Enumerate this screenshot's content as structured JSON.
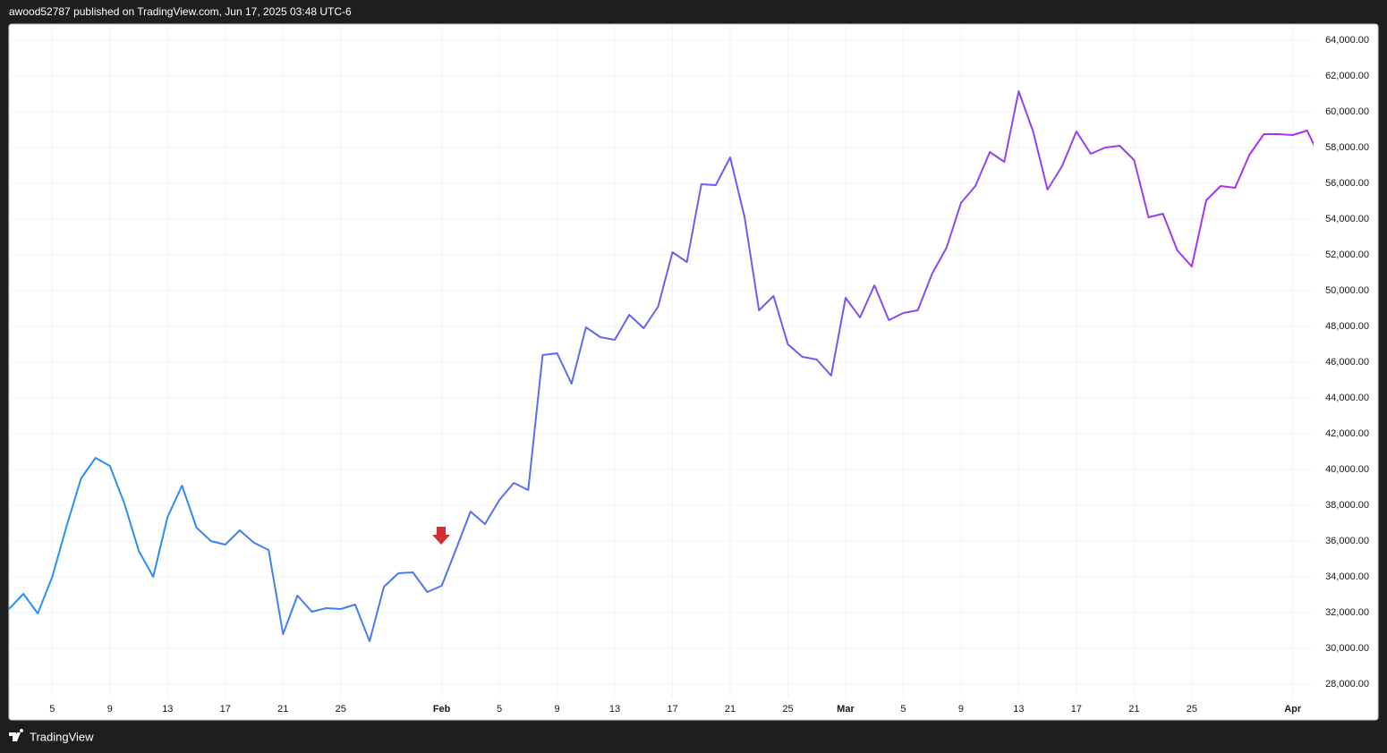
{
  "header": {
    "title": "awood52787 published on TradingView.com, Jun 17, 2025 03:48 UTC-6"
  },
  "footer": {
    "brand": "TradingView"
  },
  "chart_data": {
    "type": "line",
    "categories": [
      null,
      null,
      null,
      "5",
      null,
      null,
      null,
      "9",
      null,
      null,
      null,
      "13",
      null,
      null,
      null,
      "17",
      null,
      null,
      null,
      "21",
      null,
      null,
      null,
      "25",
      null,
      null,
      null,
      null,
      null,
      null,
      "Feb",
      null,
      null,
      null,
      "5",
      null,
      null,
      null,
      "9",
      null,
      null,
      null,
      "13",
      null,
      null,
      null,
      "17",
      null,
      null,
      null,
      "21",
      null,
      null,
      null,
      "25",
      null,
      null,
      null,
      "Mar",
      null,
      null,
      null,
      "5",
      null,
      null,
      null,
      "9",
      null,
      null,
      null,
      "13",
      null,
      null,
      null,
      "17",
      null,
      null,
      null,
      "21",
      null,
      null,
      null,
      "25",
      null,
      null,
      null,
      null,
      null,
      null,
      "Apr",
      null,
      null
    ],
    "series": [
      {
        "color": [
          "#2196F3",
          "#B02CF0"
        ],
        "values": [
          32200,
          33050,
          31950,
          34000,
          36850,
          39500,
          40650,
          40200,
          38100,
          35450,
          34000,
          37350,
          39100,
          36750,
          36000,
          35800,
          36600,
          35900,
          35500,
          30800,
          32950,
          32050,
          32250,
          32200,
          32450,
          30400,
          33450,
          34200,
          34250,
          33150,
          33500,
          35550,
          37650,
          36950,
          38300,
          39250,
          38850,
          46400,
          46500,
          44800,
          47950,
          47400,
          47250,
          48650,
          47900,
          49100,
          52150,
          51600,
          55950,
          55900,
          57450,
          54100,
          48900,
          49700,
          47000,
          46300,
          46150,
          45250,
          49600,
          48500,
          50300,
          48350,
          48750,
          48900,
          50950,
          52400,
          54900,
          55850,
          57750,
          57200,
          61150,
          58900,
          55650,
          56950,
          58900,
          57650,
          58000,
          58100,
          57300,
          54100,
          54300,
          52250,
          51350,
          55050,
          55850,
          55750,
          57600,
          58750,
          58750,
          58700,
          58950,
          57250
        ]
      }
    ],
    "ylim": [
      27250,
      64900
    ],
    "yticks": [
      {
        "value": 28000,
        "label": "28,000.00"
      },
      {
        "value": 30000,
        "label": "30,000.00"
      },
      {
        "value": 32000,
        "label": "32,000.00"
      },
      {
        "value": 34000,
        "label": "34,000.00"
      },
      {
        "value": 36000,
        "label": "36,000.00"
      },
      {
        "value": 38000,
        "label": "38,000.00"
      },
      {
        "value": 40000,
        "label": "40,000.00"
      },
      {
        "value": 42000,
        "label": "42,000.00"
      },
      {
        "value": 44000,
        "label": "44,000.00"
      },
      {
        "value": 46000,
        "label": "46,000.00"
      },
      {
        "value": 48000,
        "label": "48,000.00"
      },
      {
        "value": 50000,
        "label": "50,000.00"
      },
      {
        "value": 52000,
        "label": "52,000.00"
      },
      {
        "value": 54000,
        "label": "54,000.00"
      },
      {
        "value": 56000,
        "label": "56,000.00"
      },
      {
        "value": 58000,
        "label": "58,000.00"
      },
      {
        "value": 60000,
        "label": "60,000.00"
      },
      {
        "value": 62000,
        "label": "62,000.00"
      },
      {
        "value": 64000,
        "label": "64,000.00"
      }
    ],
    "grid": true
  }
}
